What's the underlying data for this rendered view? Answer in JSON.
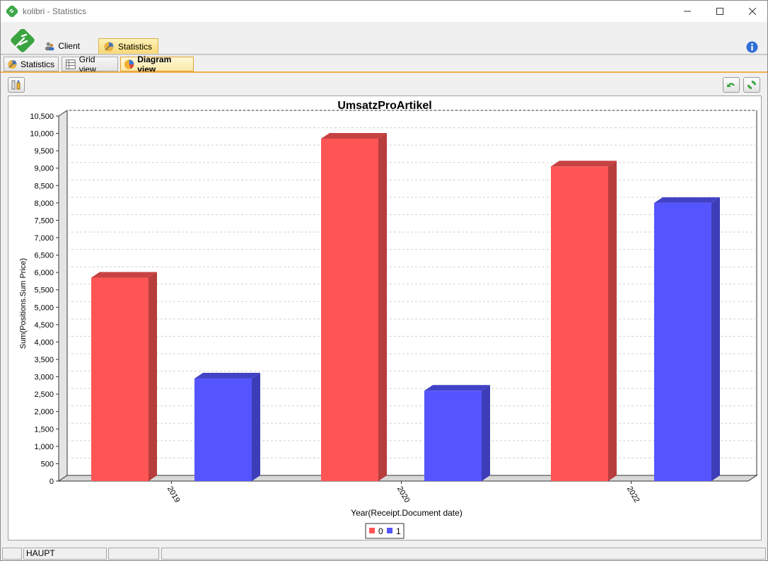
{
  "window": {
    "title": "kolibri - Statistics"
  },
  "top_tabs": [
    {
      "label": "Client",
      "icon": "users-icon"
    },
    {
      "label": "Statistics",
      "icon": "statistics-icon",
      "active": true
    }
  ],
  "sub_tabs": [
    {
      "label": "Statistics",
      "icon": "statistics-icon"
    },
    {
      "label": "Grid view",
      "icon": "grid-icon"
    },
    {
      "label": "Diagram view",
      "icon": "pie-chart-icon",
      "active": true
    }
  ],
  "status_bar": {
    "cells": [
      "",
      "HAUPT",
      "",
      ""
    ]
  },
  "colors": {
    "series_0": "#ff5555",
    "series_1": "#5555ff",
    "active_tab": "#f7d877",
    "accent_line": "#f0b04a"
  },
  "chart_data": {
    "type": "bar",
    "title": "UmsatzProArtikel",
    "xlabel": "Year(Receipt.Document date)",
    "ylabel": "Sum(Positions.Sum Price)",
    "categories": [
      "2019",
      "2020",
      "2022"
    ],
    "series": [
      {
        "name": "0",
        "values": [
          5850,
          9850,
          9050
        ]
      },
      {
        "name": "1",
        "values": [
          2950,
          2600,
          8000
        ]
      }
    ],
    "ylim": [
      0,
      10500
    ],
    "yticks": [
      "0",
      "500",
      "1,000",
      "1,500",
      "2,000",
      "2,500",
      "3,000",
      "3,500",
      "4,000",
      "4,500",
      "5,000",
      "5,500",
      "6,000",
      "6,500",
      "7,000",
      "7,500",
      "8,000",
      "8,500",
      "9,000",
      "9,500",
      "10,000",
      "10,500"
    ],
    "grid": true,
    "legend_position": "bottom-center",
    "style": "3d"
  }
}
